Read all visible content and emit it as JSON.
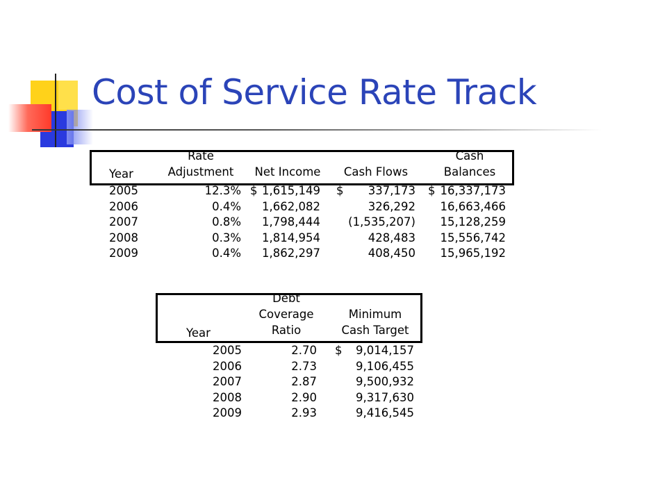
{
  "title": "Cost of Service Rate Track",
  "table1": {
    "headers": {
      "year": "Year",
      "rate_top": "Rate",
      "rate_bottom": "Adjustment",
      "net_income": "Net Income",
      "cash_flows": "Cash Flows",
      "cash_top": "Cash",
      "cash_bottom": "Balances"
    },
    "rows": [
      {
        "year": "2005",
        "rate": "12.3%",
        "ni_sym": "$",
        "ni": "1,615,149",
        "cf_sym": "$",
        "cf": "337,173",
        "cb_sym": "$",
        "cb": "16,337,173"
      },
      {
        "year": "2006",
        "rate": "0.4%",
        "ni_sym": "",
        "ni": "1,662,082",
        "cf_sym": "",
        "cf": "326,292",
        "cb_sym": "",
        "cb": "16,663,466"
      },
      {
        "year": "2007",
        "rate": "0.8%",
        "ni_sym": "",
        "ni": "1,798,444",
        "cf_sym": "",
        "cf": "(1,535,207)",
        "cb_sym": "",
        "cb": "15,128,259"
      },
      {
        "year": "2008",
        "rate": "0.3%",
        "ni_sym": "",
        "ni": "1,814,954",
        "cf_sym": "",
        "cf": "428,483",
        "cb_sym": "",
        "cb": "15,556,742"
      },
      {
        "year": "2009",
        "rate": "0.4%",
        "ni_sym": "",
        "ni": "1,862,297",
        "cf_sym": "",
        "cf": "408,450",
        "cb_sym": "",
        "cb": "15,965,192"
      }
    ]
  },
  "table2": {
    "headers": {
      "year": "Year",
      "dcr_1": "Debt",
      "dcr_2": "Coverage",
      "dcr_3": "Ratio",
      "mct_1": "Minimum",
      "mct_2": "Cash Target"
    },
    "rows": [
      {
        "year": "2005",
        "ratio": "2.70",
        "sym": "$",
        "target": "9,014,157"
      },
      {
        "year": "2006",
        "ratio": "2.73",
        "sym": "",
        "target": "9,106,455"
      },
      {
        "year": "2007",
        "ratio": "2.87",
        "sym": "",
        "target": "9,500,932"
      },
      {
        "year": "2008",
        "ratio": "2.90",
        "sym": "",
        "target": "9,317,630"
      },
      {
        "year": "2009",
        "ratio": "2.93",
        "sym": "",
        "target": "9,416,545"
      }
    ]
  }
}
